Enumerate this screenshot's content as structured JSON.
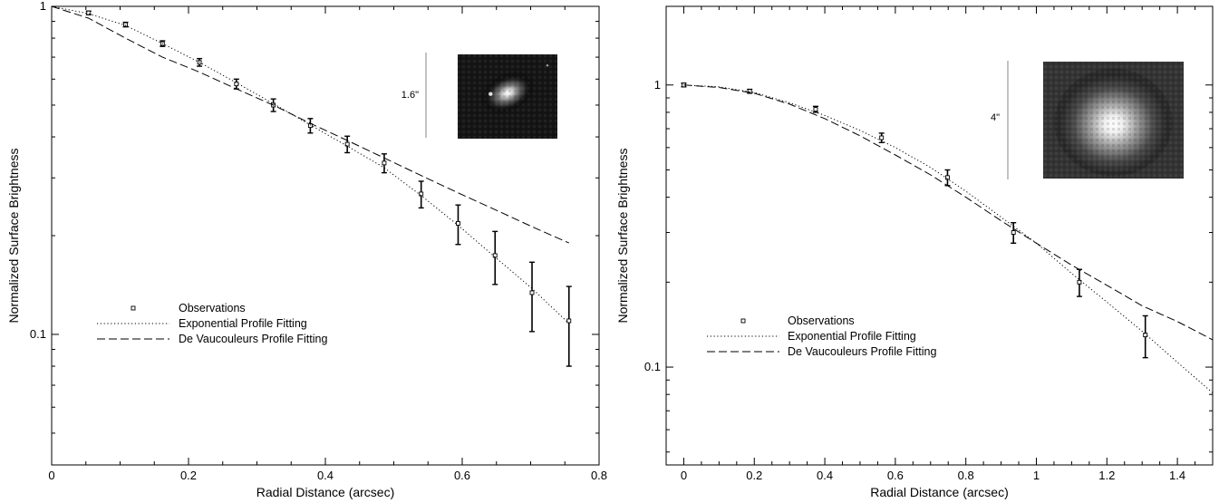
{
  "chart_data": [
    {
      "type": "scatter",
      "xlabel": "Radial Distance (arcsec)",
      "ylabel": "Normalized Surface Brightness",
      "x_scale": "linear",
      "y_scale": "log",
      "xlim": [
        0,
        0.8
      ],
      "ylim": [
        0.04,
        1
      ],
      "x_ticks": [
        0,
        0.2,
        0.4,
        0.6,
        0.8
      ],
      "x_tick_labels": [
        "0",
        "0.2",
        "0.4",
        "0.6",
        "0.8"
      ],
      "y_ticks": [
        0.1,
        1
      ],
      "y_tick_labels": [
        "0.1",
        "1"
      ],
      "grid": false,
      "legend_position": "lower-left",
      "inset_scale_label": "1.6\"",
      "series": [
        {
          "name": "Observations",
          "kind": "points-with-errorbars",
          "x": [
            0.054,
            0.108,
            0.162,
            0.216,
            0.27,
            0.324,
            0.378,
            0.432,
            0.486,
            0.54,
            0.594,
            0.648,
            0.702,
            0.756
          ],
          "y": [
            0.955,
            0.88,
            0.77,
            0.675,
            0.58,
            0.5,
            0.433,
            0.38,
            0.333,
            0.268,
            0.218,
            0.174,
            0.134,
            0.11
          ],
          "err": [
            0.012,
            0.014,
            0.015,
            0.018,
            0.02,
            0.022,
            0.022,
            0.022,
            0.022,
            0.025,
            0.03,
            0.032,
            0.032,
            0.03
          ]
        },
        {
          "name": "Exponential Profile Fitting",
          "kind": "line",
          "style": "dotted",
          "x": [
            0,
            0.054,
            0.108,
            0.162,
            0.216,
            0.27,
            0.324,
            0.378,
            0.432,
            0.486,
            0.54,
            0.594,
            0.648,
            0.702,
            0.756
          ],
          "y": [
            1.0,
            0.95,
            0.875,
            0.77,
            0.675,
            0.585,
            0.505,
            0.435,
            0.375,
            0.322,
            0.265,
            0.215,
            0.172,
            0.138,
            0.108
          ]
        },
        {
          "name": "De Vaucouleurs Profile Fitting",
          "kind": "line",
          "style": "dashed",
          "x": [
            0,
            0.054,
            0.108,
            0.162,
            0.216,
            0.27,
            0.324,
            0.378,
            0.432,
            0.486,
            0.54,
            0.594,
            0.648,
            0.702,
            0.756
          ],
          "y": [
            1.0,
            0.92,
            0.8,
            0.7,
            0.63,
            0.56,
            0.5,
            0.44,
            0.39,
            0.345,
            0.305,
            0.27,
            0.24,
            0.213,
            0.19
          ]
        }
      ]
    },
    {
      "type": "scatter",
      "xlabel": "Radial Distance (arcsec)",
      "ylabel": "Normalized Surface Brightness",
      "x_scale": "linear",
      "y_scale": "log",
      "xlim": [
        -0.05,
        1.5
      ],
      "ylim": [
        0.045,
        1.9
      ],
      "x_ticks": [
        0,
        0.2,
        0.4,
        0.6,
        0.8,
        1,
        1.2,
        1.4
      ],
      "x_tick_labels": [
        "0",
        "0.2",
        "0.4",
        "0.6",
        "0.8",
        "1",
        "1.2",
        "1.4"
      ],
      "y_ticks": [
        0.1,
        1
      ],
      "y_tick_labels": [
        "0.1",
        "1"
      ],
      "grid": false,
      "legend_position": "lower-left",
      "inset_scale_label": "4\"",
      "series": [
        {
          "name": "Observations",
          "kind": "points-with-errorbars",
          "x": [
            0,
            0.187,
            0.374,
            0.561,
            0.748,
            0.935,
            1.122,
            1.309
          ],
          "y": [
            1.0,
            0.95,
            0.82,
            0.65,
            0.47,
            0.3,
            0.2,
            0.13
          ],
          "err": [
            0.015,
            0.015,
            0.02,
            0.025,
            0.03,
            0.025,
            0.022,
            0.022
          ]
        },
        {
          "name": "Exponential Profile Fitting",
          "kind": "line",
          "style": "dotted",
          "x": [
            0,
            0.1,
            0.2,
            0.3,
            0.4,
            0.5,
            0.6,
            0.7,
            0.8,
            0.9,
            1.0,
            1.1,
            1.2,
            1.3,
            1.4,
            1.5
          ],
          "y": [
            1.0,
            0.985,
            0.94,
            0.865,
            0.78,
            0.69,
            0.6,
            0.51,
            0.42,
            0.34,
            0.275,
            0.215,
            0.17,
            0.134,
            0.104,
            0.081
          ]
        },
        {
          "name": "De Vaucouleurs Profile Fitting",
          "kind": "line",
          "style": "dashed",
          "x": [
            0,
            0.1,
            0.2,
            0.3,
            0.4,
            0.5,
            0.6,
            0.7,
            0.8,
            0.9,
            1.0,
            1.1,
            1.2,
            1.3,
            1.4,
            1.5
          ],
          "y": [
            1.0,
            0.98,
            0.935,
            0.855,
            0.76,
            0.66,
            0.565,
            0.48,
            0.4,
            0.33,
            0.275,
            0.23,
            0.195,
            0.165,
            0.145,
            0.125
          ]
        }
      ]
    }
  ]
}
